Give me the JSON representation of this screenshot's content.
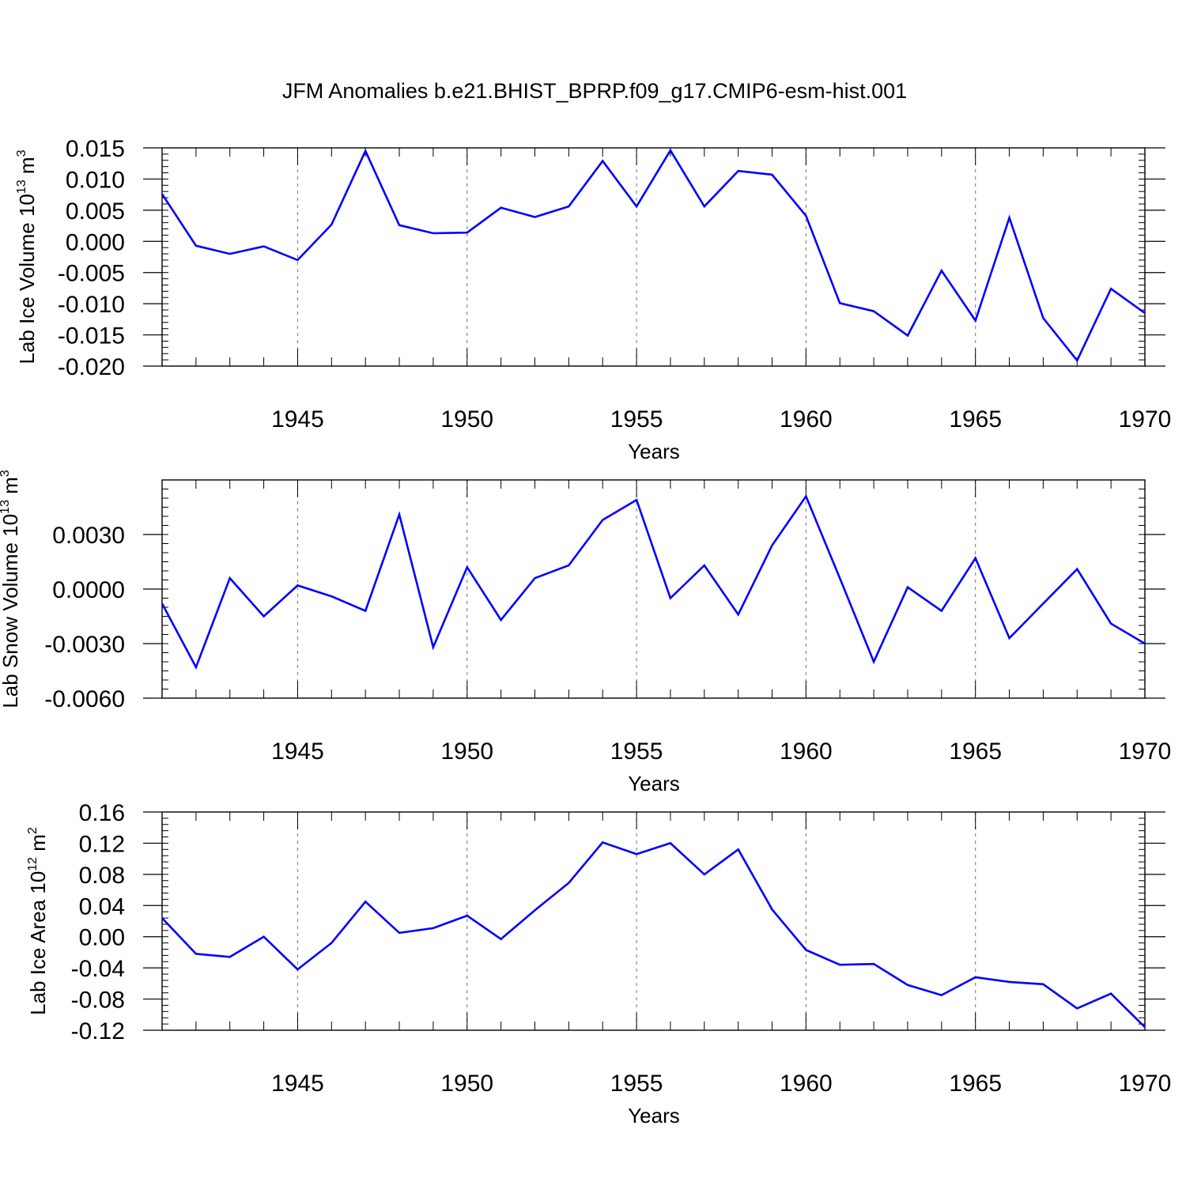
{
  "figure": {
    "title": "JFM Anomalies b.e21.BHIST_BPRP.f09_g17.CMIP6-esm-hist.001"
  },
  "colors": {
    "line": "#0000ff",
    "axis": "#000000",
    "grid": "#888888"
  },
  "chart_data": [
    {
      "type": "line",
      "ylabel": "Lab Ice Volume 10",
      "ylabel_exp": "13",
      "ylabel_unit": " m",
      "ylabel_unit_exp": "3",
      "xlabel": "Years",
      "xlim": [
        1941,
        1970
      ],
      "ylim": [
        -0.02,
        0.015
      ],
      "xticks": [
        1945,
        1950,
        1955,
        1960,
        1965,
        1970
      ],
      "yticks": [
        0.015,
        0.01,
        0.005,
        0.0,
        -0.005,
        -0.01,
        -0.015,
        -0.02
      ],
      "ytick_labels": [
        "0.015",
        "0.010",
        "0.005",
        "0.000",
        "-0.005",
        "-0.010",
        "-0.015",
        "-0.020"
      ],
      "grid": "vertical dashed at major x ticks",
      "x": [
        1941,
        1942,
        1943,
        1944,
        1945,
        1946,
        1947,
        1948,
        1949,
        1950,
        1951,
        1952,
        1953,
        1954,
        1955,
        1956,
        1957,
        1958,
        1959,
        1960,
        1961,
        1962,
        1963,
        1964,
        1965,
        1966,
        1967,
        1968,
        1969,
        1970
      ],
      "y": [
        0.0076,
        -0.0007,
        -0.002,
        -0.0008,
        -0.003,
        0.0027,
        0.0145,
        0.0026,
        0.0013,
        0.0014,
        0.0054,
        0.0039,
        0.0056,
        0.0129,
        0.0056,
        0.0146,
        0.0056,
        0.0113,
        0.0107,
        0.0041,
        -0.0099,
        -0.0112,
        -0.0151,
        -0.0047,
        -0.0127,
        0.0038,
        -0.0123,
        -0.0191,
        -0.0076,
        -0.0115
      ]
    },
    {
      "type": "line",
      "ylabel": "Lab Snow Volume 10",
      "ylabel_exp": "13",
      "ylabel_unit": " m",
      "ylabel_unit_exp": "3",
      "xlabel": "Years",
      "xlim": [
        1941,
        1970
      ],
      "ylim": [
        -0.006,
        0.006
      ],
      "xticks": [
        1945,
        1950,
        1955,
        1960,
        1965,
        1970
      ],
      "yticks": [
        0.003,
        0.0,
        -0.003,
        -0.006
      ],
      "ytick_labels": [
        "0.0030",
        "0.0000",
        "-0.0030",
        "-0.0060"
      ],
      "grid": "vertical dashed at major x ticks",
      "x": [
        1941,
        1942,
        1943,
        1944,
        1945,
        1946,
        1947,
        1948,
        1949,
        1950,
        1951,
        1952,
        1953,
        1954,
        1955,
        1956,
        1957,
        1958,
        1959,
        1960,
        1961,
        1962,
        1963,
        1964,
        1965,
        1966,
        1967,
        1968,
        1969,
        1970
      ],
      "y": [
        -0.0008,
        -0.0043,
        0.0006,
        -0.0015,
        0.0002,
        -0.0004,
        -0.0012,
        0.0041,
        -0.0032,
        0.0012,
        -0.0017,
        0.0006,
        0.0013,
        0.0038,
        0.0049,
        -0.0005,
        0.0013,
        -0.0014,
        0.0024,
        0.0051,
        0.0006,
        -0.004,
        0.0001,
        -0.0012,
        0.0017,
        -0.0027,
        -0.0008,
        0.0011,
        -0.0019,
        -0.003
      ]
    },
    {
      "type": "line",
      "ylabel": "Lab Ice Area 10",
      "ylabel_exp": "12",
      "ylabel_unit": " m",
      "ylabel_unit_exp": "2",
      "xlabel": "Years",
      "xlim": [
        1941,
        1970
      ],
      "ylim": [
        -0.12,
        0.16
      ],
      "xticks": [
        1945,
        1950,
        1955,
        1960,
        1965,
        1970
      ],
      "yticks": [
        0.16,
        0.12,
        0.08,
        0.04,
        0.0,
        -0.04,
        -0.08,
        -0.12
      ],
      "ytick_labels": [
        "0.16",
        "0.12",
        "0.08",
        "0.04",
        "0.00",
        "-0.04",
        "-0.08",
        "-0.12"
      ],
      "grid": "vertical dashed at major x ticks",
      "x": [
        1941,
        1942,
        1943,
        1944,
        1945,
        1946,
        1947,
        1948,
        1949,
        1950,
        1951,
        1952,
        1953,
        1954,
        1955,
        1956,
        1957,
        1958,
        1959,
        1960,
        1961,
        1962,
        1963,
        1964,
        1965,
        1966,
        1967,
        1968,
        1969,
        1970
      ],
      "y": [
        0.024,
        -0.022,
        -0.026,
        0.0,
        -0.042,
        -0.008,
        0.045,
        0.005,
        0.011,
        0.027,
        -0.003,
        0.034,
        0.069,
        0.121,
        0.106,
        0.12,
        0.08,
        0.112,
        0.035,
        -0.017,
        -0.036,
        -0.035,
        -0.062,
        -0.075,
        -0.052,
        -0.058,
        -0.061,
        -0.092,
        -0.073,
        -0.116
      ]
    }
  ]
}
